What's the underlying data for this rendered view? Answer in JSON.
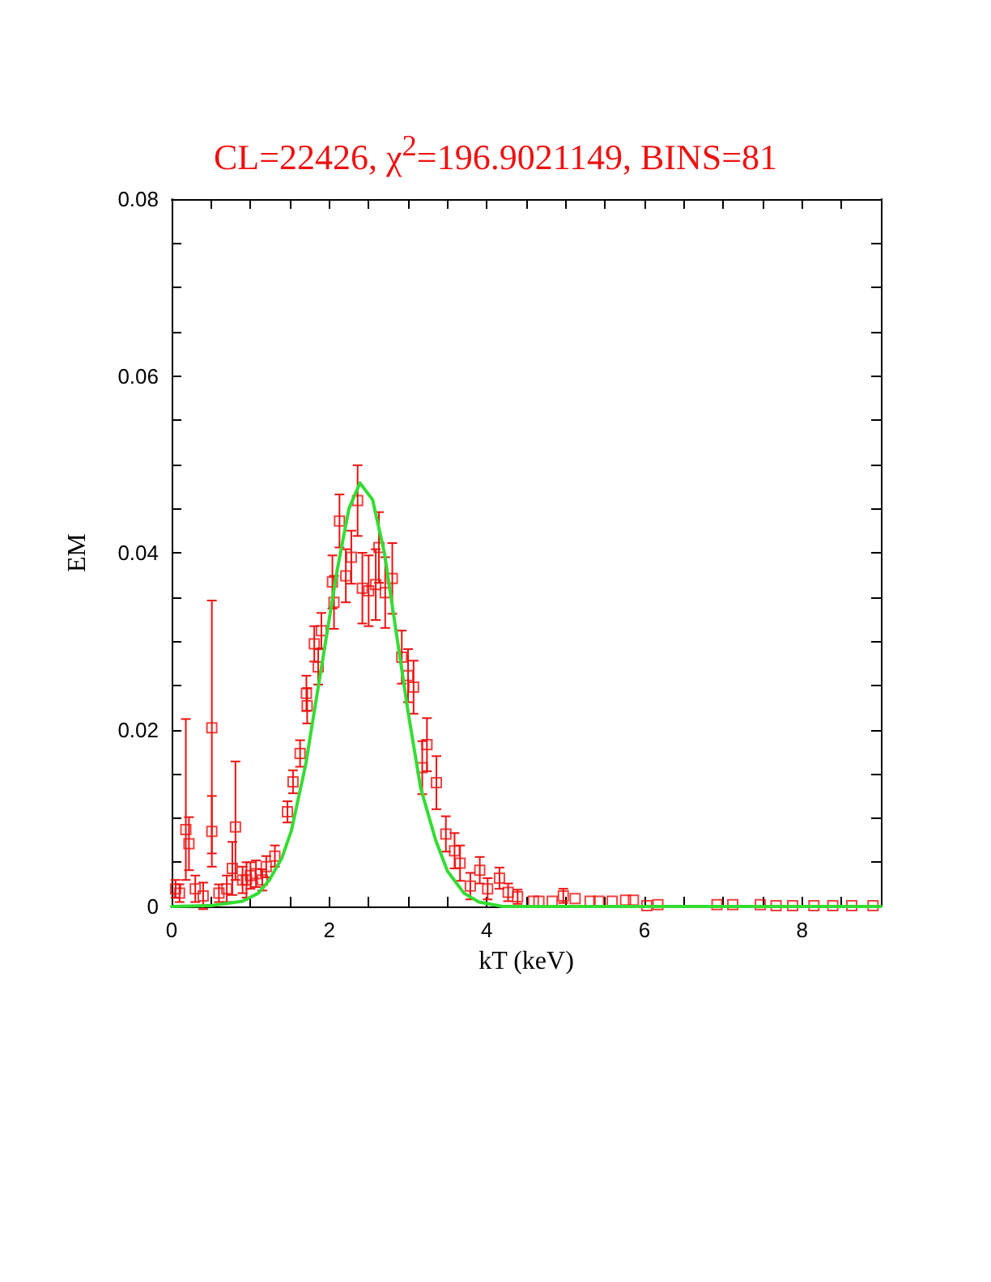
{
  "chart_data": {
    "type": "scatter",
    "title": "CL=22426, χ$^{2}$=196.9021149, BINS=81",
    "xlabel": "kT (keV)",
    "ylabel": "EM",
    "xlim": [
      0,
      9
    ],
    "ylim": [
      0,
      0.08
    ],
    "xticks": [
      0,
      {
        "value": 0.5,
        "label": null
      },
      {
        "value": 1,
        "label": null
      },
      {
        "value": 1.5,
        "label": null
      },
      2,
      {
        "value": 2.5,
        "label": null
      },
      {
        "value": 3,
        "label": null
      },
      {
        "value": 3.5,
        "label": null
      },
      4,
      {
        "value": 4.5,
        "label": null
      },
      {
        "value": 5,
        "label": null
      },
      {
        "value": 5.5,
        "label": null
      },
      6,
      {
        "value": 6.5,
        "label": null
      },
      {
        "value": 7,
        "label": null
      },
      {
        "value": 7.5,
        "label": null
      },
      8,
      {
        "value": 8.5,
        "label": null
      }
    ],
    "yticks": [
      {
        "value": 0,
        "label": "0"
      },
      {
        "value": 0.005,
        "label": null
      },
      {
        "value": 0.01,
        "label": null
      },
      {
        "value": 0.015,
        "label": null
      },
      0.02,
      {
        "value": 0.025,
        "label": null
      },
      {
        "value": 0.03,
        "label": null
      },
      {
        "value": 0.035,
        "label": null
      },
      0.04,
      {
        "value": 0.045,
        "label": null
      },
      {
        "value": 0.05,
        "label": null
      },
      {
        "value": 0.055,
        "label": null
      },
      0.06,
      {
        "value": 0.065,
        "label": null
      },
      {
        "value": 0.07,
        "label": null
      },
      {
        "value": 0.075,
        "label": null
      },
      0.08
    ],
    "grid": false,
    "series": [
      {
        "color": "#ee1111",
        "marker": "square",
        "x": [
          0.05,
          0.1,
          0.18,
          0.22,
          0.3,
          0.4,
          0.51,
          0.51,
          0.6,
          0.7,
          0.77,
          0.81,
          0.9,
          0.95,
          1.0,
          1.07,
          1.15,
          1.2,
          1.31,
          1.47,
          1.54,
          1.63,
          1.71,
          1.72,
          1.81,
          1.86,
          1.9,
          2.04,
          2.06,
          2.13,
          2.21,
          2.28,
          2.36,
          2.42,
          2.5,
          2.59,
          2.63,
          2.71,
          2.8,
          2.92,
          3.0,
          3.07,
          3.18,
          3.24,
          3.36,
          3.48,
          3.59,
          3.66,
          3.79,
          3.91,
          4.01,
          4.16,
          4.27,
          4.39,
          4.59,
          4.66,
          4.83,
          4.97,
          5.12,
          5.31,
          5.42,
          5.59,
          5.76,
          5.86,
          6.03,
          6.17,
          6.92,
          7.12,
          7.47,
          7.67,
          7.88,
          8.15,
          8.39,
          8.63,
          8.9
        ],
        "values": [
          0.002,
          0.0015,
          0.0087,
          0.0071,
          0.002,
          0.0012,
          0.0202,
          0.0085,
          0.0015,
          0.002,
          0.0043,
          0.009,
          0.003,
          0.003,
          0.0035,
          0.0037,
          0.003,
          0.0045,
          0.0057,
          0.0107,
          0.0141,
          0.0173,
          0.0241,
          0.0227,
          0.0297,
          0.0271,
          0.0312,
          0.0367,
          0.0344,
          0.0436,
          0.0374,
          0.0395,
          0.0459,
          0.036,
          0.0357,
          0.0364,
          0.0406,
          0.0355,
          0.0371,
          0.0282,
          0.0261,
          0.0248,
          0.0157,
          0.0183,
          0.014,
          0.0082,
          0.0063,
          0.0049,
          0.0023,
          0.0041,
          0.002,
          0.0032,
          0.0016,
          0.0011,
          0.0006,
          0.0006,
          0.0006,
          0.0012,
          0.0009,
          0.0006,
          0.0006,
          0.0006,
          0.0007,
          0.0007,
          0.0001,
          0.0002,
          0.0002,
          0.0002,
          0.0002,
          0.0001,
          0.0001,
          0.0001,
          0.0001,
          0.0001,
          0.0001
        ],
        "errors": [
          0.001,
          0.001,
          [
            0.003,
            0.0212
          ],
          0.003,
          0.0015,
          0.0015,
          [
            0.006,
            0.0346
          ],
          0.004,
          0.001,
          0.0015,
          0.003,
          [
            0.003,
            0.0164
          ],
          0.0015,
          0.002,
          0.0015,
          0.0015,
          0.0012,
          0.0012,
          0.0012,
          0.0012,
          0.0013,
          0.0015,
          0.002,
          0.002,
          0.002,
          0.002,
          0.002,
          0.003,
          0.003,
          0.003,
          0.003,
          0.003,
          0.004,
          0.004,
          0.004,
          0.004,
          0.004,
          0.004,
          0.004,
          0.003,
          0.003,
          0.003,
          0.003,
          0.003,
          0.003,
          0.002,
          0.002,
          0.002,
          0.0015,
          0.0015,
          0.0012,
          0.0012,
          0.001,
          0.0008,
          null,
          null,
          null,
          0.0008,
          null,
          null,
          null,
          null,
          null,
          null,
          null,
          null,
          null,
          null,
          null,
          null,
          null,
          null,
          null,
          null,
          null
        ]
      },
      {
        "type": "line",
        "color": "#33dd33",
        "marker": "none",
        "line_style": "solid",
        "x": [
          0,
          0.5,
          0.9,
          1.1,
          1.24,
          1.4,
          1.52,
          1.7,
          1.9,
          2.1,
          2.25,
          2.39,
          2.55,
          2.7,
          2.85,
          3.0,
          3.16,
          3.35,
          3.5,
          3.71,
          3.9,
          4.2,
          5,
          6,
          7,
          8,
          9
        ],
        "values": [
          0,
          0.0001,
          0.0006,
          0.0015,
          0.003,
          0.0055,
          0.0086,
          0.016,
          0.027,
          0.038,
          0.045,
          0.0479,
          0.046,
          0.04,
          0.031,
          0.022,
          0.0134,
          0.0075,
          0.004,
          0.0015,
          0.0005,
          0,
          0,
          0,
          0,
          0,
          0
        ]
      }
    ]
  }
}
